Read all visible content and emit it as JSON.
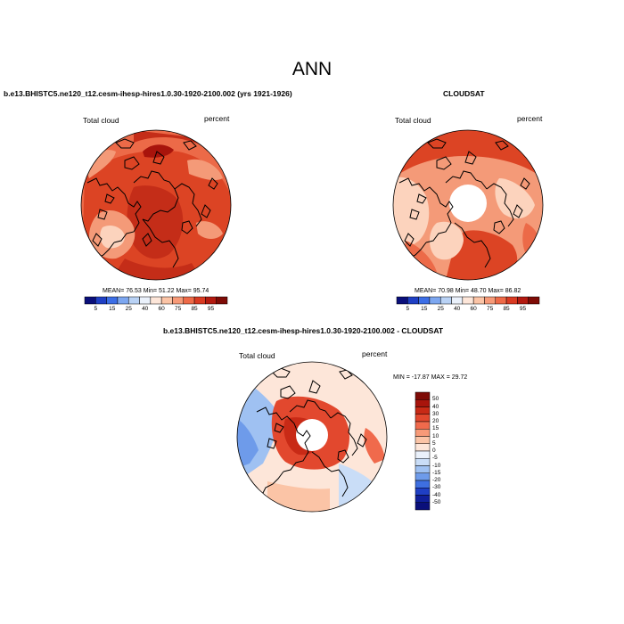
{
  "figure_title": "ANN",
  "panels": [
    {
      "title": "b.e13.BHISTC5.ne120_t12.cesm-ihesp-hires1.0.30-1920-2100.002 (yrs 1921-1926)",
      "variable_label": "Total cloud",
      "units_label": "percent",
      "stats_text": "MEAN= 76.53  Min= 51.22  Max= 95.74",
      "mean": 76.53,
      "min": 51.22,
      "max": 95.74,
      "colorbar_ticks": [
        "5",
        "15",
        "25",
        "40",
        "60",
        "75",
        "85",
        "95"
      ]
    },
    {
      "title": "CLOUDSAT",
      "variable_label": "Total cloud",
      "units_label": "percent",
      "stats_text": "MEAN= 70.98  Min= 48.70  Max= 86.82",
      "mean": 70.98,
      "min": 48.7,
      "max": 86.82,
      "colorbar_ticks": [
        "5",
        "15",
        "25",
        "40",
        "60",
        "75",
        "85",
        "95"
      ]
    },
    {
      "title": "b.e13.BHISTC5.ne120_t12.cesm-ihesp-hires1.0.30-1920-2100.002 - CLOUDSAT",
      "variable_label": "Total cloud",
      "units_label": "percent",
      "stats_text": "MIN = -17.87  MAX =  29.72",
      "min": -17.87,
      "max": 29.72,
      "colorbar_ticks": [
        "50",
        "40",
        "30",
        "20",
        "15",
        "10",
        "5",
        "0",
        "-5",
        "-10",
        "-15",
        "-20",
        "-30",
        "-40",
        "-50"
      ]
    }
  ],
  "colors": {
    "abs_scale": [
      "#0a0f7a",
      "#1f3fc4",
      "#3c6ee6",
      "#7da7f0",
      "#b9d2f5",
      "#eaf1fb",
      "#fde6d9",
      "#fbc4a6",
      "#f79a78",
      "#ee6a48",
      "#d93a22",
      "#b31a10",
      "#7e0b06"
    ],
    "diff_scale": [
      "#7e0b06",
      "#a8140c",
      "#c82a16",
      "#e2482e",
      "#f06a4c",
      "#f79a78",
      "#fbc4a6",
      "#fde6d9",
      "#eaf1fb",
      "#c9ddf7",
      "#9fc1f2",
      "#6e9bea",
      "#3e6fe0",
      "#1f3fc4",
      "#101f9a",
      "#0a0f7a"
    ]
  }
}
